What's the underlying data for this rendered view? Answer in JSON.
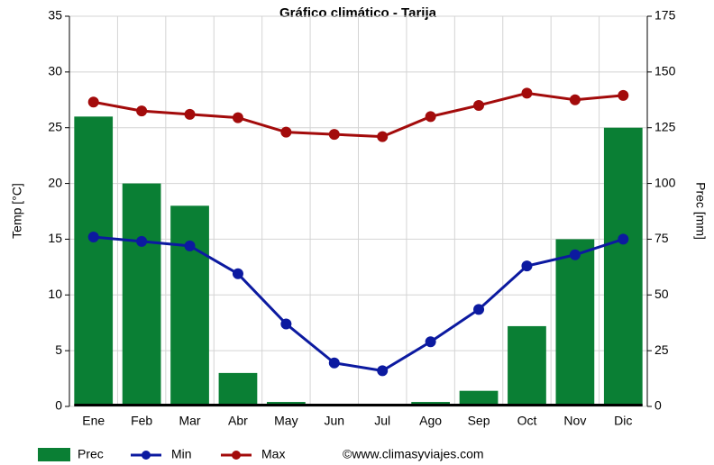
{
  "chart_data": {
    "type": "bar-line",
    "title": "Gráfico climático - Tarija",
    "y_label": "Temp [°C]",
    "y2_label": "Prec [mm]",
    "credit": "©www.climasyviajes.com",
    "categories": [
      "Ene",
      "Feb",
      "Mar",
      "Abr",
      "May",
      "Jun",
      "Jul",
      "Ago",
      "Sep",
      "Oct",
      "Nov",
      "Dic"
    ],
    "series": [
      {
        "name": "Prec",
        "kind": "bar",
        "axis": "y2",
        "color": "#0a7f34",
        "values": [
          130,
          100,
          90,
          15,
          2,
          1,
          1,
          2,
          7,
          36,
          75,
          125
        ]
      },
      {
        "name": "Min",
        "kind": "line",
        "color": "#0c1aa0",
        "values": [
          15.2,
          14.8,
          14.4,
          11.9,
          7.4,
          3.9,
          3.2,
          5.8,
          8.7,
          12.6,
          13.6,
          15.0
        ]
      },
      {
        "name": "Max",
        "kind": "line",
        "color": "#a30b0b",
        "values": [
          27.3,
          26.5,
          26.2,
          25.9,
          24.6,
          24.4,
          24.2,
          26.0,
          27.0,
          28.1,
          27.5,
          27.9
        ]
      }
    ],
    "ylim": [
      0,
      35
    ],
    "yticks": [
      0,
      5,
      10,
      15,
      20,
      25,
      30,
      35
    ],
    "y2lim": [
      0,
      175
    ],
    "y2ticks": [
      0,
      25,
      50,
      75,
      100,
      125,
      150,
      175
    ],
    "grid": true
  }
}
